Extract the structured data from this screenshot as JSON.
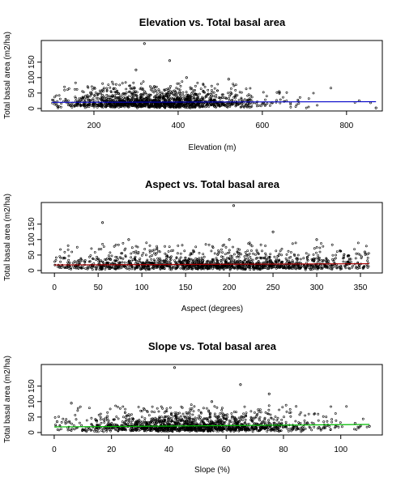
{
  "chart_data": [
    {
      "type": "scatter",
      "title": "Elevation vs. Total basal area",
      "xlabel": "Elevation (m)",
      "ylabel": "Total basal area (m2/ha)",
      "xlim": [
        75,
        885
      ],
      "ylim": [
        -8,
        220
      ],
      "xticks": [
        200,
        400,
        600,
        800
      ],
      "yticks": [
        0,
        50,
        100,
        150
      ],
      "grid": false,
      "trend": {
        "color": "#0000c8",
        "x": [
          100,
          870
        ],
        "y": [
          20,
          22
        ]
      },
      "points": {
        "n": 1500,
        "x_center": 350,
        "x_spread": 120,
        "x_range": [
          100,
          870
        ],
        "y_median": 20,
        "y_max": 210,
        "highlights": [
          [
            320,
            210
          ],
          [
            380,
            155
          ],
          [
            300,
            125
          ],
          [
            420,
            100
          ],
          [
            520,
            95
          ],
          [
            180,
            40
          ],
          [
            640,
            55
          ],
          [
            830,
            25
          ],
          [
            870,
            2
          ]
        ]
      }
    },
    {
      "type": "scatter",
      "title": "Aspect vs. Total basal area",
      "xlabel": "Aspect (degrees)",
      "ylabel": "Total basal area (m2/ha)",
      "xlim": [
        -15,
        375
      ],
      "ylim": [
        -8,
        220
      ],
      "xticks": [
        0,
        50,
        100,
        150,
        200,
        250,
        300,
        350
      ],
      "yticks": [
        0,
        50,
        100,
        150
      ],
      "grid": false,
      "trend": {
        "color": "#aa0000",
        "x": [
          0,
          360
        ],
        "y": [
          18,
          22
        ]
      },
      "points": {
        "n": 1500,
        "x_center": 180,
        "x_spread": 110,
        "x_range": [
          0,
          360
        ],
        "y_median": 20,
        "y_max": 210,
        "highlights": [
          [
            205,
            210
          ],
          [
            55,
            155
          ],
          [
            200,
            100
          ],
          [
            250,
            125
          ],
          [
            300,
            100
          ],
          [
            85,
            100
          ],
          [
            10,
            40
          ],
          [
            355,
            60
          ]
        ]
      }
    },
    {
      "type": "scatter",
      "title": "Slope vs. Total basal area",
      "xlabel": "Slope (%)",
      "ylabel": "Total basal area (m2/ha)",
      "xlim": [
        -4.5,
        114.5
      ],
      "ylim": [
        -8,
        220
      ],
      "xticks": [
        0,
        20,
        40,
        60,
        80,
        100
      ],
      "yticks": [
        0,
        50,
        100,
        150
      ],
      "grid": false,
      "trend": {
        "color": "#00bb00",
        "x": [
          0,
          110
        ],
        "y": [
          18,
          26
        ]
      },
      "points": {
        "n": 1500,
        "x_center": 48,
        "x_spread": 22,
        "x_range": [
          0,
          110
        ],
        "y_median": 20,
        "y_max": 210,
        "highlights": [
          [
            42,
            210
          ],
          [
            65,
            155
          ],
          [
            6,
            95
          ],
          [
            75,
            125
          ],
          [
            55,
            100
          ],
          [
            105,
            30
          ],
          [
            110,
            20
          ],
          [
            1,
            35
          ]
        ]
      }
    }
  ]
}
